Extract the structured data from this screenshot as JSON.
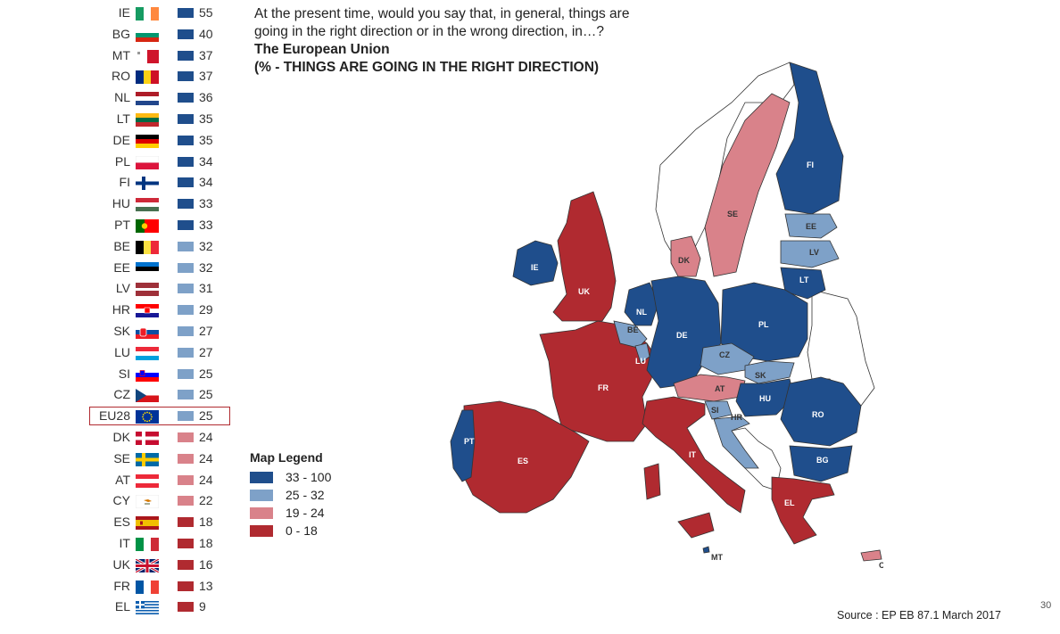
{
  "colors": {
    "band_33_100": "#1f4e8c",
    "band_25_32": "#7ea1c8",
    "band_19_24": "#d9828a",
    "band_0_18": "#b02a30",
    "non_eu": "#ffffff",
    "highlight": "#b02a30"
  },
  "question": {
    "line1": "At the present time, would you say that, in general, things are",
    "line2": "going in the right direction or in the wrong direction, in…?",
    "subtitle1": "The European Union",
    "subtitle2": "(% - THINGS ARE GOING IN THE RIGHT DIRECTION)"
  },
  "countries": [
    {
      "code": "IE",
      "value": "55",
      "band": "band_33_100",
      "flag": "ie-flag-icon"
    },
    {
      "code": "BG",
      "value": "40",
      "band": "band_33_100",
      "flag": "bg-flag-icon"
    },
    {
      "code": "MT",
      "value": "37",
      "band": "band_33_100",
      "flag": "mt-flag-icon"
    },
    {
      "code": "RO",
      "value": "37",
      "band": "band_33_100",
      "flag": "ro-flag-icon"
    },
    {
      "code": "NL",
      "value": "36",
      "band": "band_33_100",
      "flag": "nl-flag-icon"
    },
    {
      "code": "LT",
      "value": "35",
      "band": "band_33_100",
      "flag": "lt-flag-icon"
    },
    {
      "code": "DE",
      "value": "35",
      "band": "band_33_100",
      "flag": "de-flag-icon"
    },
    {
      "code": "PL",
      "value": "34",
      "band": "band_33_100",
      "flag": "pl-flag-icon"
    },
    {
      "code": "FI",
      "value": "34",
      "band": "band_33_100",
      "flag": "fi-flag-icon"
    },
    {
      "code": "HU",
      "value": "33",
      "band": "band_33_100",
      "flag": "hu-flag-icon"
    },
    {
      "code": "PT",
      "value": "33",
      "band": "band_33_100",
      "flag": "pt-flag-icon"
    },
    {
      "code": "BE",
      "value": "32",
      "band": "band_25_32",
      "flag": "be-flag-icon"
    },
    {
      "code": "EE",
      "value": "32",
      "band": "band_25_32",
      "flag": "ee-flag-icon"
    },
    {
      "code": "LV",
      "value": "31",
      "band": "band_25_32",
      "flag": "lv-flag-icon"
    },
    {
      "code": "HR",
      "value": "29",
      "band": "band_25_32",
      "flag": "hr-flag-icon"
    },
    {
      "code": "SK",
      "value": "27",
      "band": "band_25_32",
      "flag": "sk-flag-icon"
    },
    {
      "code": "LU",
      "value": "27",
      "band": "band_25_32",
      "flag": "lu-flag-icon"
    },
    {
      "code": "SI",
      "value": "25",
      "band": "band_25_32",
      "flag": "si-flag-icon"
    },
    {
      "code": "CZ",
      "value": "25",
      "band": "band_25_32",
      "flag": "cz-flag-icon"
    },
    {
      "code": "EU28",
      "value": "25",
      "band": "band_25_32",
      "flag": "eu-flag-icon",
      "highlight": true
    },
    {
      "code": "DK",
      "value": "24",
      "band": "band_19_24",
      "flag": "dk-flag-icon"
    },
    {
      "code": "SE",
      "value": "24",
      "band": "band_19_24",
      "flag": "se-flag-icon"
    },
    {
      "code": "AT",
      "value": "24",
      "band": "band_19_24",
      "flag": "at-flag-icon"
    },
    {
      "code": "CY",
      "value": "22",
      "band": "band_19_24",
      "flag": "cy-flag-icon"
    },
    {
      "code": "ES",
      "value": "18",
      "band": "band_0_18",
      "flag": "es-flag-icon"
    },
    {
      "code": "IT",
      "value": "18",
      "band": "band_0_18",
      "flag": "it-flag-icon"
    },
    {
      "code": "UK",
      "value": "16",
      "band": "band_0_18",
      "flag": "uk-flag-icon"
    },
    {
      "code": "FR",
      "value": "13",
      "band": "band_0_18",
      "flag": "fr-flag-icon"
    },
    {
      "code": "EL",
      "value": "9",
      "band": "band_0_18",
      "flag": "el-flag-icon"
    }
  ],
  "legend": {
    "title": "Map Legend",
    "items": [
      {
        "label": "33 - 100",
        "band": "band_33_100"
      },
      {
        "label": "25 - 32",
        "band": "band_25_32"
      },
      {
        "label": "19 - 24",
        "band": "band_19_24"
      },
      {
        "label": "0 - 18",
        "band": "band_0_18"
      }
    ]
  },
  "map_labels": {
    "IE": "IE",
    "UK": "UK",
    "FR": "FR",
    "ES": "ES",
    "PT": "PT",
    "NL": "NL",
    "BE": "BE",
    "LU": "LU",
    "DE": "DE",
    "DK": "DK",
    "SE": "SE",
    "FI": "FI",
    "EE": "EE",
    "LV": "LV",
    "LT": "LT",
    "PL": "PL",
    "CZ": "CZ",
    "SK": "SK",
    "AT": "AT",
    "HU": "HU",
    "SI": "SI",
    "HR": "HR",
    "RO": "RO",
    "BG": "BG",
    "IT": "IT",
    "EL": "EL",
    "MT": "MT",
    "CY": "CY"
  },
  "source": "Source : EP EB 87.1 March 2017",
  "page_number": "30"
}
